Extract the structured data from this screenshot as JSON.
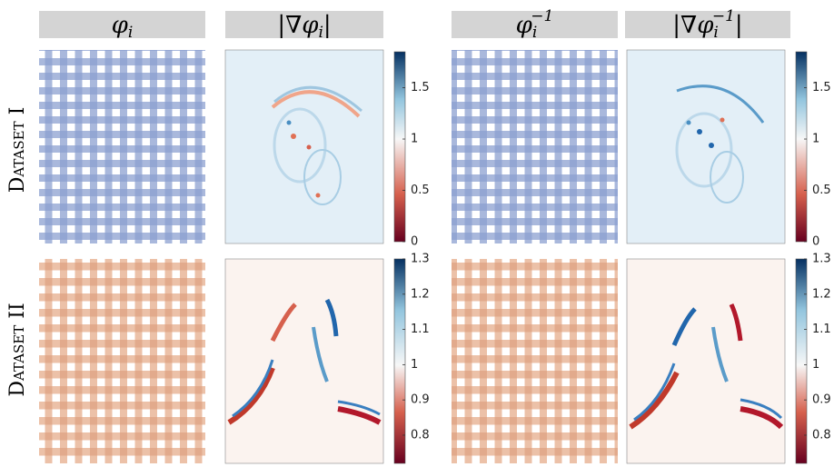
{
  "columns": [
    {
      "base": "φ",
      "sub": "i"
    },
    {
      "base": "|∇φ",
      "sub": "i",
      "end": "|"
    },
    {
      "base": "φ",
      "sub": "i",
      "sup": "−1"
    },
    {
      "base": "|∇φ",
      "sub": "i",
      "sup": "−1",
      "end": "|"
    }
  ],
  "rows": [
    "Dataset I",
    "Dataset II"
  ],
  "colorbars": [
    {
      "lim": [
        0,
        1.85
      ],
      "ticks": [
        0,
        0.5,
        1,
        1.5
      ]
    },
    {
      "lim": [
        0.72,
        1.3
      ],
      "ticks": [
        0.8,
        0.9,
        1,
        1.1,
        1.2,
        1.3
      ]
    }
  ]
}
